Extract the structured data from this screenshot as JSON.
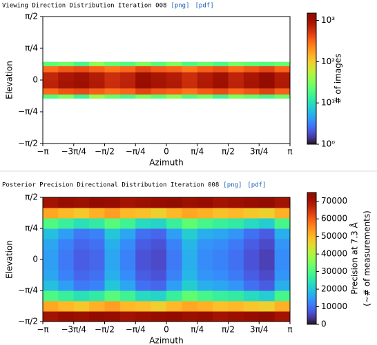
{
  "chart_data": [
    {
      "type": "heatmap",
      "title": "Viewing Direction Distribution Iteration 008",
      "links": [
        "[png]",
        "[pdf]"
      ],
      "xlabel": "Azimuth",
      "ylabel": "Elevation",
      "colorbar_label": [
        "# of images"
      ],
      "xlim": [
        -3.1416,
        3.1416
      ],
      "ylim": [
        -1.5708,
        1.5708
      ],
      "xticks": [
        {
          "value": -3.1416,
          "label": "−π"
        },
        {
          "value": -2.3562,
          "label": "−3π/4"
        },
        {
          "value": -1.5708,
          "label": "−π/2"
        },
        {
          "value": -0.7854,
          "label": "−π/4"
        },
        0,
        {
          "value": 0.7854,
          "label": "π/4"
        },
        {
          "value": 1.5708,
          "label": "π/2"
        },
        {
          "value": 2.3562,
          "label": "3π/4"
        },
        {
          "value": 3.1416,
          "label": "π"
        }
      ],
      "yticks": [
        {
          "value": -1.5708,
          "label": "−π/2"
        },
        {
          "value": -0.7854,
          "label": "−π/4"
        },
        0,
        {
          "value": 0.7854,
          "label": "π/4"
        },
        {
          "value": 1.5708,
          "label": "π/2"
        }
      ],
      "color_scale": "log",
      "clim": [
        1,
        1500
      ],
      "cticks": [
        {
          "value": 1,
          "label": "10⁰"
        },
        {
          "value": 10,
          "label": "10¹"
        },
        {
          "value": 100,
          "label": "10²"
        },
        {
          "value": 1000,
          "label": "10³"
        }
      ],
      "x_bins": [
        -3.1416,
        -2.7489,
        -2.3562,
        -1.9635,
        -1.5708,
        -1.1781,
        -0.7854,
        -0.3927,
        0,
        0.3927,
        0.7854,
        1.1781,
        1.5708,
        1.9635,
        2.3562,
        2.7489,
        3.1416
      ],
      "y_bins": [
        -0.45,
        -0.35,
        -0.2,
        0,
        0.2,
        0.35,
        0.45
      ],
      "values": [
        [
          20,
          30,
          15,
          40,
          25,
          18,
          30,
          22,
          35,
          20,
          28,
          16,
          30,
          24,
          18,
          26
        ],
        [
          300,
          380,
          420,
          340,
          280,
          320,
          450,
          360,
          330,
          270,
          350,
          410,
          310,
          370,
          460,
          330
        ],
        [
          700,
          900,
          1000,
          800,
          600,
          700,
          1100,
          900,
          800,
          600,
          800,
          1000,
          700,
          900,
          1200,
          800
        ],
        [
          650,
          850,
          950,
          760,
          580,
          680,
          1050,
          880,
          760,
          590,
          770,
          960,
          680,
          860,
          1150,
          780
        ],
        [
          290,
          360,
          400,
          330,
          270,
          310,
          430,
          350,
          320,
          260,
          340,
          390,
          300,
          360,
          440,
          320
        ],
        [
          22,
          28,
          17,
          38,
          24,
          20,
          32,
          21,
          33,
          19,
          26,
          18,
          29,
          23,
          20,
          25
        ]
      ]
    },
    {
      "type": "heatmap",
      "title": "Posterior Precision Directional Distribution Iteration 008",
      "links": [
        "[png]",
        "[pdf]"
      ],
      "xlabel": "Azimuth",
      "ylabel": "Elevation",
      "colorbar_label": [
        "Precision at 7.3 Å",
        "(~# of measurements)"
      ],
      "xlim": [
        -3.1416,
        3.1416
      ],
      "ylim": [
        -1.5708,
        1.5708
      ],
      "xticks": [
        {
          "value": -3.1416,
          "label": "−π"
        },
        {
          "value": -2.3562,
          "label": "−3π/4"
        },
        {
          "value": -1.5708,
          "label": "−π/2"
        },
        {
          "value": -0.7854,
          "label": "−π/4"
        },
        0,
        {
          "value": 0.7854,
          "label": "π/4"
        },
        {
          "value": 1.5708,
          "label": "π/2"
        },
        {
          "value": 2.3562,
          "label": "3π/4"
        },
        {
          "value": 3.1416,
          "label": "π"
        }
      ],
      "yticks": [
        {
          "value": -1.5708,
          "label": "−π/2"
        },
        {
          "value": -0.7854,
          "label": "−π/4"
        },
        0,
        {
          "value": 0.7854,
          "label": "π/4"
        },
        {
          "value": 1.5708,
          "label": "π/2"
        }
      ],
      "color_scale": "linear",
      "clim": [
        0,
        75000
      ],
      "cticks": [
        0,
        10000,
        20000,
        30000,
        40000,
        50000,
        60000,
        70000
      ],
      "x_bins": [
        -3.1416,
        -2.7489,
        -2.3562,
        -1.9635,
        -1.5708,
        -1.1781,
        -0.7854,
        -0.3927,
        0,
        0.3927,
        0.7854,
        1.1781,
        1.5708,
        1.9635,
        2.3562,
        2.7489,
        3.1416
      ],
      "y_bins": [
        -1.5708,
        -1.309,
        -1.0472,
        -0.7854,
        -0.5236,
        -0.2618,
        0,
        0.2618,
        0.5236,
        0.7854,
        1.0472,
        1.309,
        1.5708
      ],
      "values": [
        [
          70000,
          72000,
          71000,
          73000,
          72000,
          70000,
          71000,
          72000,
          73000,
          71000,
          72000,
          70000,
          71000,
          72000,
          73000,
          70000
        ],
        [
          52000,
          50000,
          48000,
          51000,
          53000,
          50000,
          49000,
          47000,
          50000,
          52000,
          51000,
          49000,
          50000,
          48000,
          47000,
          51000
        ],
        [
          30000,
          27000,
          24000,
          26000,
          31000,
          28000,
          23000,
          22000,
          27000,
          32000,
          29000,
          27000,
          26000,
          23000,
          21000,
          29000
        ],
        [
          19000,
          15000,
          11000,
          12000,
          20000,
          16000,
          10000,
          9000,
          15000,
          21000,
          17000,
          16000,
          14000,
          10000,
          8000,
          17000
        ],
        [
          16000,
          12000,
          9000,
          10000,
          17000,
          13000,
          8000,
          7000,
          12000,
          18000,
          14000,
          13000,
          11000,
          8000,
          6000,
          14000
        ],
        [
          15000,
          11000,
          8000,
          9000,
          16000,
          12000,
          7000,
          6000,
          11000,
          17000,
          13000,
          12000,
          10000,
          7000,
          5000,
          13000
        ],
        [
          15000,
          11000,
          8000,
          9000,
          16000,
          12000,
          7000,
          6000,
          11000,
          17000,
          13000,
          12000,
          10000,
          7000,
          5000,
          13000
        ],
        [
          16000,
          12000,
          9000,
          10000,
          17000,
          13000,
          8000,
          7000,
          12000,
          18000,
          14000,
          13000,
          11000,
          8000,
          6000,
          14000
        ],
        [
          19000,
          15000,
          11000,
          12000,
          20000,
          16000,
          10000,
          9000,
          15000,
          21000,
          17000,
          16000,
          14000,
          10000,
          8000,
          17000
        ],
        [
          30000,
          27000,
          24000,
          26000,
          31000,
          28000,
          23000,
          22000,
          27000,
          32000,
          29000,
          27000,
          26000,
          23000,
          21000,
          29000
        ],
        [
          52000,
          50000,
          48000,
          51000,
          53000,
          50000,
          49000,
          47000,
          50000,
          52000,
          51000,
          49000,
          50000,
          48000,
          47000,
          51000
        ],
        [
          70000,
          72000,
          71000,
          73000,
          72000,
          70000,
          71000,
          72000,
          73000,
          71000,
          72000,
          70000,
          71000,
          72000,
          73000,
          70000
        ]
      ]
    }
  ]
}
